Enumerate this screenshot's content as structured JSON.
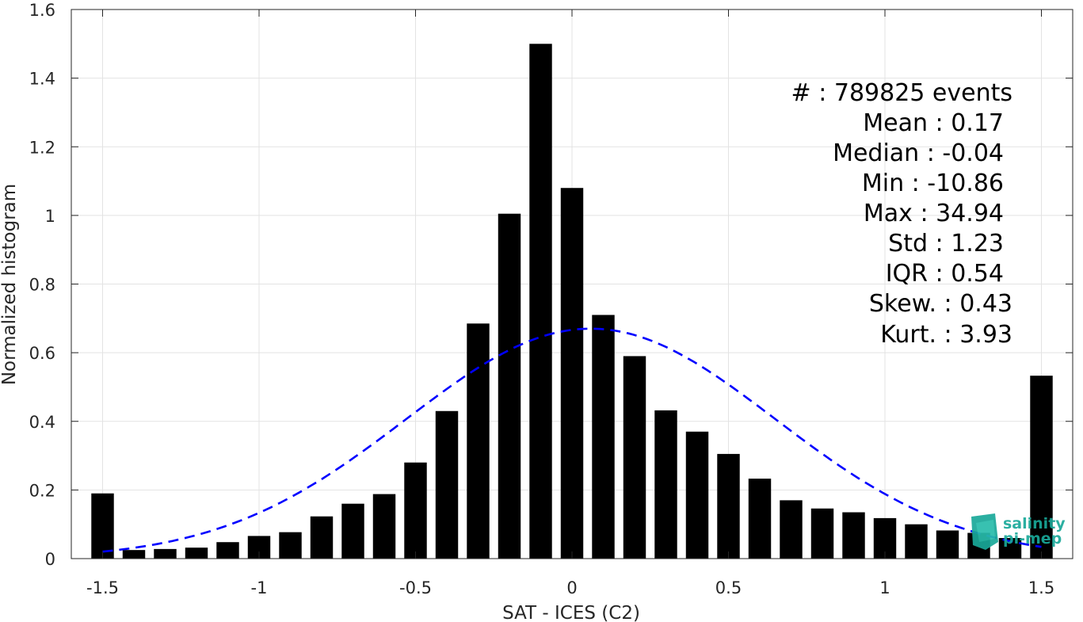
{
  "chart_data": {
    "type": "bar",
    "xlabel": "SAT - ICES (C2)",
    "ylabel": "Normalized histogram",
    "xlim": [
      -1.6,
      1.6
    ],
    "ylim": [
      0,
      1.6
    ],
    "grid": true,
    "x_ticks": [
      -1.5,
      -1,
      -0.5,
      0,
      0.5,
      1,
      1.5
    ],
    "x_tick_labels": [
      "-1.5",
      "-1",
      "-0.5",
      "0",
      "0.5",
      "1",
      "1.5"
    ],
    "y_ticks": [
      0,
      0.2,
      0.4,
      0.6,
      0.8,
      1.0,
      1.2,
      1.4,
      1.6
    ],
    "y_tick_labels": [
      "0",
      "0.2",
      "0.4",
      "0.6",
      "0.8",
      "1",
      "1.2",
      "1.4",
      "1.6"
    ],
    "bar_color": "#000000",
    "x": [
      -1.5,
      -1.4,
      -1.3,
      -1.2,
      -1.1,
      -1.0,
      -0.9,
      -0.8,
      -0.7,
      -0.6,
      -0.5,
      -0.4,
      -0.3,
      -0.2,
      -0.1,
      0.0,
      0.1,
      0.2,
      0.3,
      0.4,
      0.5,
      0.6,
      0.7,
      0.8,
      0.9,
      1.0,
      1.1,
      1.2,
      1.3,
      1.4,
      1.5
    ],
    "values": [
      0.19,
      0.025,
      0.028,
      0.032,
      0.048,
      0.066,
      0.077,
      0.123,
      0.16,
      0.188,
      0.28,
      0.43,
      0.685,
      1.005,
      1.5,
      1.08,
      0.71,
      0.59,
      0.432,
      0.37,
      0.305,
      0.233,
      0.17,
      0.146,
      0.135,
      0.118,
      0.1,
      0.082,
      0.075,
      0.06,
      0.533
    ],
    "fit_curve": {
      "style": "dashed",
      "color": "#0000ff",
      "mean": 0.06,
      "sigma": 0.59,
      "peak": 0.67,
      "x_range": [
        -1.5,
        1.5
      ]
    },
    "stats": [
      "#  : 789825 events",
      "Mean : 0.17",
      "Median : -0.04",
      "Min : -10.86",
      "Max : 34.94",
      "Std : 1.23",
      "IQR : 0.54",
      "Skew. : 0.43",
      "Kurt. : 3.93"
    ]
  },
  "logo": {
    "line1": "salinity",
    "line2": "pi-mep",
    "color": "#1aa99a"
  }
}
